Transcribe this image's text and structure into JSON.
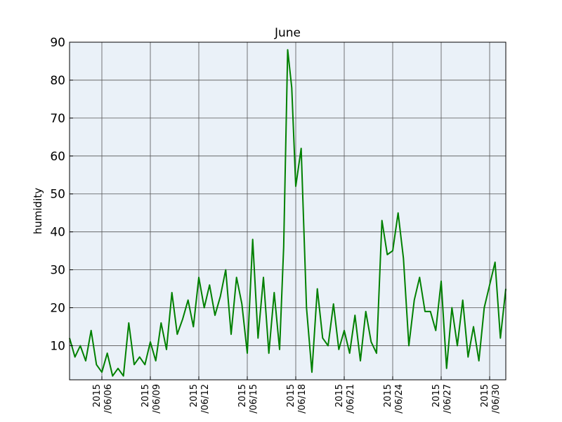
{
  "chart_data": {
    "type": "line",
    "title": "June",
    "xlabel": "",
    "ylabel": "humidity",
    "xlim": [
      "2015-06-04",
      "2015-07-01"
    ],
    "ylim": [
      1,
      90
    ],
    "y_ticks": [
      10,
      20,
      30,
      40,
      50,
      60,
      70,
      80,
      90
    ],
    "x_ticks": [
      {
        "date": "2015-06-06",
        "line1": "2015",
        "line2": "/06/06"
      },
      {
        "date": "2015-06-09",
        "line1": "2015",
        "line2": "/06/09"
      },
      {
        "date": "2015-06-12",
        "line1": "2015",
        "line2": "/06/12"
      },
      {
        "date": "2015-06-15",
        "line1": "2015",
        "line2": "/06/15"
      },
      {
        "date": "2015-06-18",
        "line1": "2015",
        "line2": "/06/18"
      },
      {
        "date": "2015-06-21",
        "line1": "2015",
        "line2": "/06/21"
      },
      {
        "date": "2015-06-24",
        "line1": "2015",
        "line2": "/06/24"
      },
      {
        "date": "2015-06-27",
        "line1": "2015",
        "line2": "/06/27"
      },
      {
        "date": "2015-06-30",
        "line1": "2015",
        "line2": "/06/30"
      }
    ],
    "grid": true,
    "colors": {
      "line": "#008000",
      "plot_bg": "#eaf1f8",
      "grid": "#555555"
    },
    "series": [
      {
        "x": [
          "2015-06-04 00:00",
          "2015-06-04 08:00",
          "2015-06-04 16:00",
          "2015-06-05 00:00",
          "2015-06-05 08:00",
          "2015-06-05 16:00",
          "2015-06-06 00:00",
          "2015-06-06 08:00",
          "2015-06-06 16:00",
          "2015-06-07 00:00",
          "2015-06-07 08:00",
          "2015-06-07 16:00",
          "2015-06-08 00:00",
          "2015-06-08 08:00",
          "2015-06-08 16:00",
          "2015-06-09 00:00",
          "2015-06-09 08:00",
          "2015-06-09 16:00",
          "2015-06-10 00:00",
          "2015-06-10 08:00",
          "2015-06-10 16:00",
          "2015-06-11 00:00",
          "2015-06-11 08:00",
          "2015-06-11 16:00",
          "2015-06-12 00:00",
          "2015-06-12 08:00",
          "2015-06-12 16:00",
          "2015-06-13 00:00",
          "2015-06-13 08:00",
          "2015-06-13 16:00",
          "2015-06-14 00:00",
          "2015-06-14 08:00",
          "2015-06-14 16:00",
          "2015-06-15 00:00",
          "2015-06-15 08:00",
          "2015-06-15 16:00",
          "2015-06-16 00:00",
          "2015-06-16 08:00",
          "2015-06-16 16:00",
          "2015-06-17 00:00",
          "2015-06-17 06:00",
          "2015-06-17 12:00",
          "2015-06-17 18:00",
          "2015-06-18 00:00",
          "2015-06-18 08:00",
          "2015-06-18 16:00",
          "2015-06-19 00:00",
          "2015-06-19 08:00",
          "2015-06-19 16:00",
          "2015-06-20 00:00",
          "2015-06-20 08:00",
          "2015-06-20 16:00",
          "2015-06-21 00:00",
          "2015-06-21 08:00",
          "2015-06-21 16:00",
          "2015-06-22 00:00",
          "2015-06-22 08:00",
          "2015-06-22 16:00",
          "2015-06-23 00:00",
          "2015-06-23 08:00",
          "2015-06-23 16:00",
          "2015-06-24 00:00",
          "2015-06-24 08:00",
          "2015-06-24 16:00",
          "2015-06-25 00:00",
          "2015-06-25 08:00",
          "2015-06-25 16:00",
          "2015-06-26 00:00",
          "2015-06-26 08:00",
          "2015-06-26 16:00",
          "2015-06-27 00:00",
          "2015-06-27 08:00",
          "2015-06-27 16:00",
          "2015-06-28 00:00",
          "2015-06-28 08:00",
          "2015-06-28 16:00",
          "2015-06-29 00:00",
          "2015-06-29 08:00",
          "2015-06-29 16:00",
          "2015-06-30 00:00",
          "2015-06-30 08:00",
          "2015-06-30 16:00",
          "2015-07-01 00:00"
        ],
        "y": [
          12,
          7,
          10,
          6,
          14,
          5,
          3,
          8,
          2,
          4,
          2,
          16,
          5,
          7,
          5,
          11,
          6,
          16,
          9,
          24,
          13,
          17,
          22,
          15,
          28,
          20,
          26,
          18,
          23,
          30,
          13,
          28,
          21,
          8,
          38,
          12,
          28,
          8,
          24,
          9,
          36,
          88,
          78,
          52,
          62,
          20,
          3,
          25,
          12,
          10,
          21,
          9,
          14,
          8,
          18,
          6,
          19,
          11,
          8,
          43,
          34,
          35,
          45,
          33,
          10,
          22,
          28,
          19,
          19,
          14,
          27,
          4,
          20,
          10,
          22,
          7,
          15,
          6,
          20,
          26,
          32,
          12,
          25
        ]
      }
    ]
  }
}
